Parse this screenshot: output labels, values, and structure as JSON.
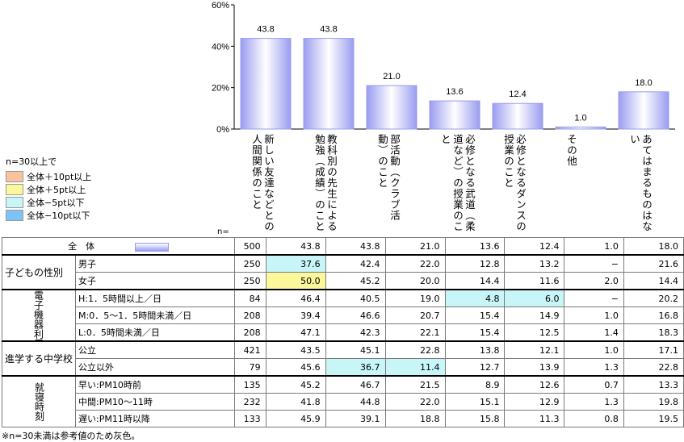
{
  "chart_data": {
    "type": "bar",
    "categories": [
      "新しい友達などとの人間関係のこと",
      "教科別の先生による勉強（成績）のこと",
      "部活動（クラブ活動）のこと",
      "必修となる武道（柔道など）の授業のこと",
      "必修となるダンスの授業のこと",
      "その他",
      "あてはまるものはない"
    ],
    "values": [
      43.8,
      43.8,
      21.0,
      13.6,
      12.4,
      1.0,
      18.0
    ],
    "value_labels": [
      "43.8",
      "43.8",
      "21.0",
      "13.6",
      "12.4",
      "1.0",
      "18.0"
    ],
    "ylim": [
      0,
      60
    ],
    "yticks": [
      0,
      20,
      40,
      60
    ],
    "ytick_labels": [
      "0%",
      "20%",
      "40%",
      "60%"
    ],
    "bar_color": "#9a9cf0",
    "grid": false
  },
  "legend": {
    "title": "n=30以上で",
    "items": [
      {
        "label": "全体＋10pt以上",
        "color": "#f9c3a0"
      },
      {
        "label": "全体＋5pt以上",
        "color": "#fbf79a"
      },
      {
        "label": "全体−5pt以下",
        "color": "#c8f5f7"
      },
      {
        "label": "全体−10pt以下",
        "color": "#7dc3f7"
      }
    ]
  },
  "table": {
    "n_label": "n=",
    "total": {
      "label": "全　体",
      "n": "500",
      "values": [
        "43.8",
        "43.8",
        "21.0",
        "13.6",
        "12.4",
        "1.0",
        "18.0"
      ]
    },
    "groups": [
      {
        "label": "子どもの性別",
        "vertical": false,
        "rows": [
          {
            "label": "男子",
            "n": "250",
            "values": [
              "37.6",
              "42.4",
              "22.0",
              "12.8",
              "13.2",
              "−",
              "21.6"
            ]
          },
          {
            "label": "女子",
            "n": "250",
            "values": [
              "50.0",
              "45.2",
              "20.0",
              "14.4",
              "11.6",
              "2.0",
              "14.4"
            ]
          }
        ]
      },
      {
        "label": "時間",
        "sublabel": "電子機器利用",
        "vertical": true,
        "rows": [
          {
            "label": "H:1．5時間以上／日",
            "n": "84",
            "values": [
              "46.4",
              "40.5",
              "19.0",
              "4.8",
              "6.0",
              "−",
              "20.2"
            ]
          },
          {
            "label": "M:0．5〜1．5時間未満／日",
            "n": "208",
            "values": [
              "39.4",
              "46.6",
              "20.7",
              "15.4",
              "14.9",
              "1.0",
              "16.8"
            ]
          },
          {
            "label": "L:0．5時間未満／日",
            "n": "208",
            "values": [
              "47.1",
              "42.3",
              "22.1",
              "15.4",
              "12.5",
              "1.4",
              "18.3"
            ]
          }
        ]
      },
      {
        "label": "進学する中学校",
        "vertical": false,
        "rows": [
          {
            "label": "公立",
            "n": "421",
            "values": [
              "43.5",
              "45.1",
              "22.8",
              "13.8",
              "12.1",
              "1.0",
              "17.1"
            ]
          },
          {
            "label": "公立以外",
            "n": "79",
            "values": [
              "45.6",
              "36.7",
              "11.4",
              "12.7",
              "13.9",
              "1.3",
              "22.8"
            ]
          }
        ]
      },
      {
        "label": "就寝時刻",
        "vertical": true,
        "rows": [
          {
            "label": "早い:PM10時前",
            "n": "135",
            "values": [
              "45.2",
              "46.7",
              "21.5",
              "8.9",
              "12.6",
              "0.7",
              "13.3"
            ]
          },
          {
            "label": "中間:PM10〜11時",
            "n": "232",
            "values": [
              "41.8",
              "44.8",
              "22.0",
              "15.1",
              "12.9",
              "1.3",
              "19.8"
            ]
          },
          {
            "label": "遅い:PM11時以降",
            "n": "133",
            "values": [
              "45.9",
              "39.1",
              "18.8",
              "15.8",
              "11.3",
              "0.8",
              "19.5"
            ]
          }
        ]
      }
    ],
    "highlights": [
      {
        "row": "男子",
        "col": 0,
        "color": "#c8f5f7"
      },
      {
        "row": "女子",
        "col": 0,
        "color": "#fbf79a"
      },
      {
        "row": "H:1．5時間以上／日",
        "col": 3,
        "color": "#c8f5f7"
      },
      {
        "row": "H:1．5時間以上／日",
        "col": 4,
        "color": "#c8f5f7"
      },
      {
        "row": "公立以外",
        "col": 1,
        "color": "#c8f5f7"
      },
      {
        "row": "公立以外",
        "col": 2,
        "color": "#c8f5f7"
      }
    ]
  },
  "footnote": "※n=30未満は参考値のため灰色。"
}
